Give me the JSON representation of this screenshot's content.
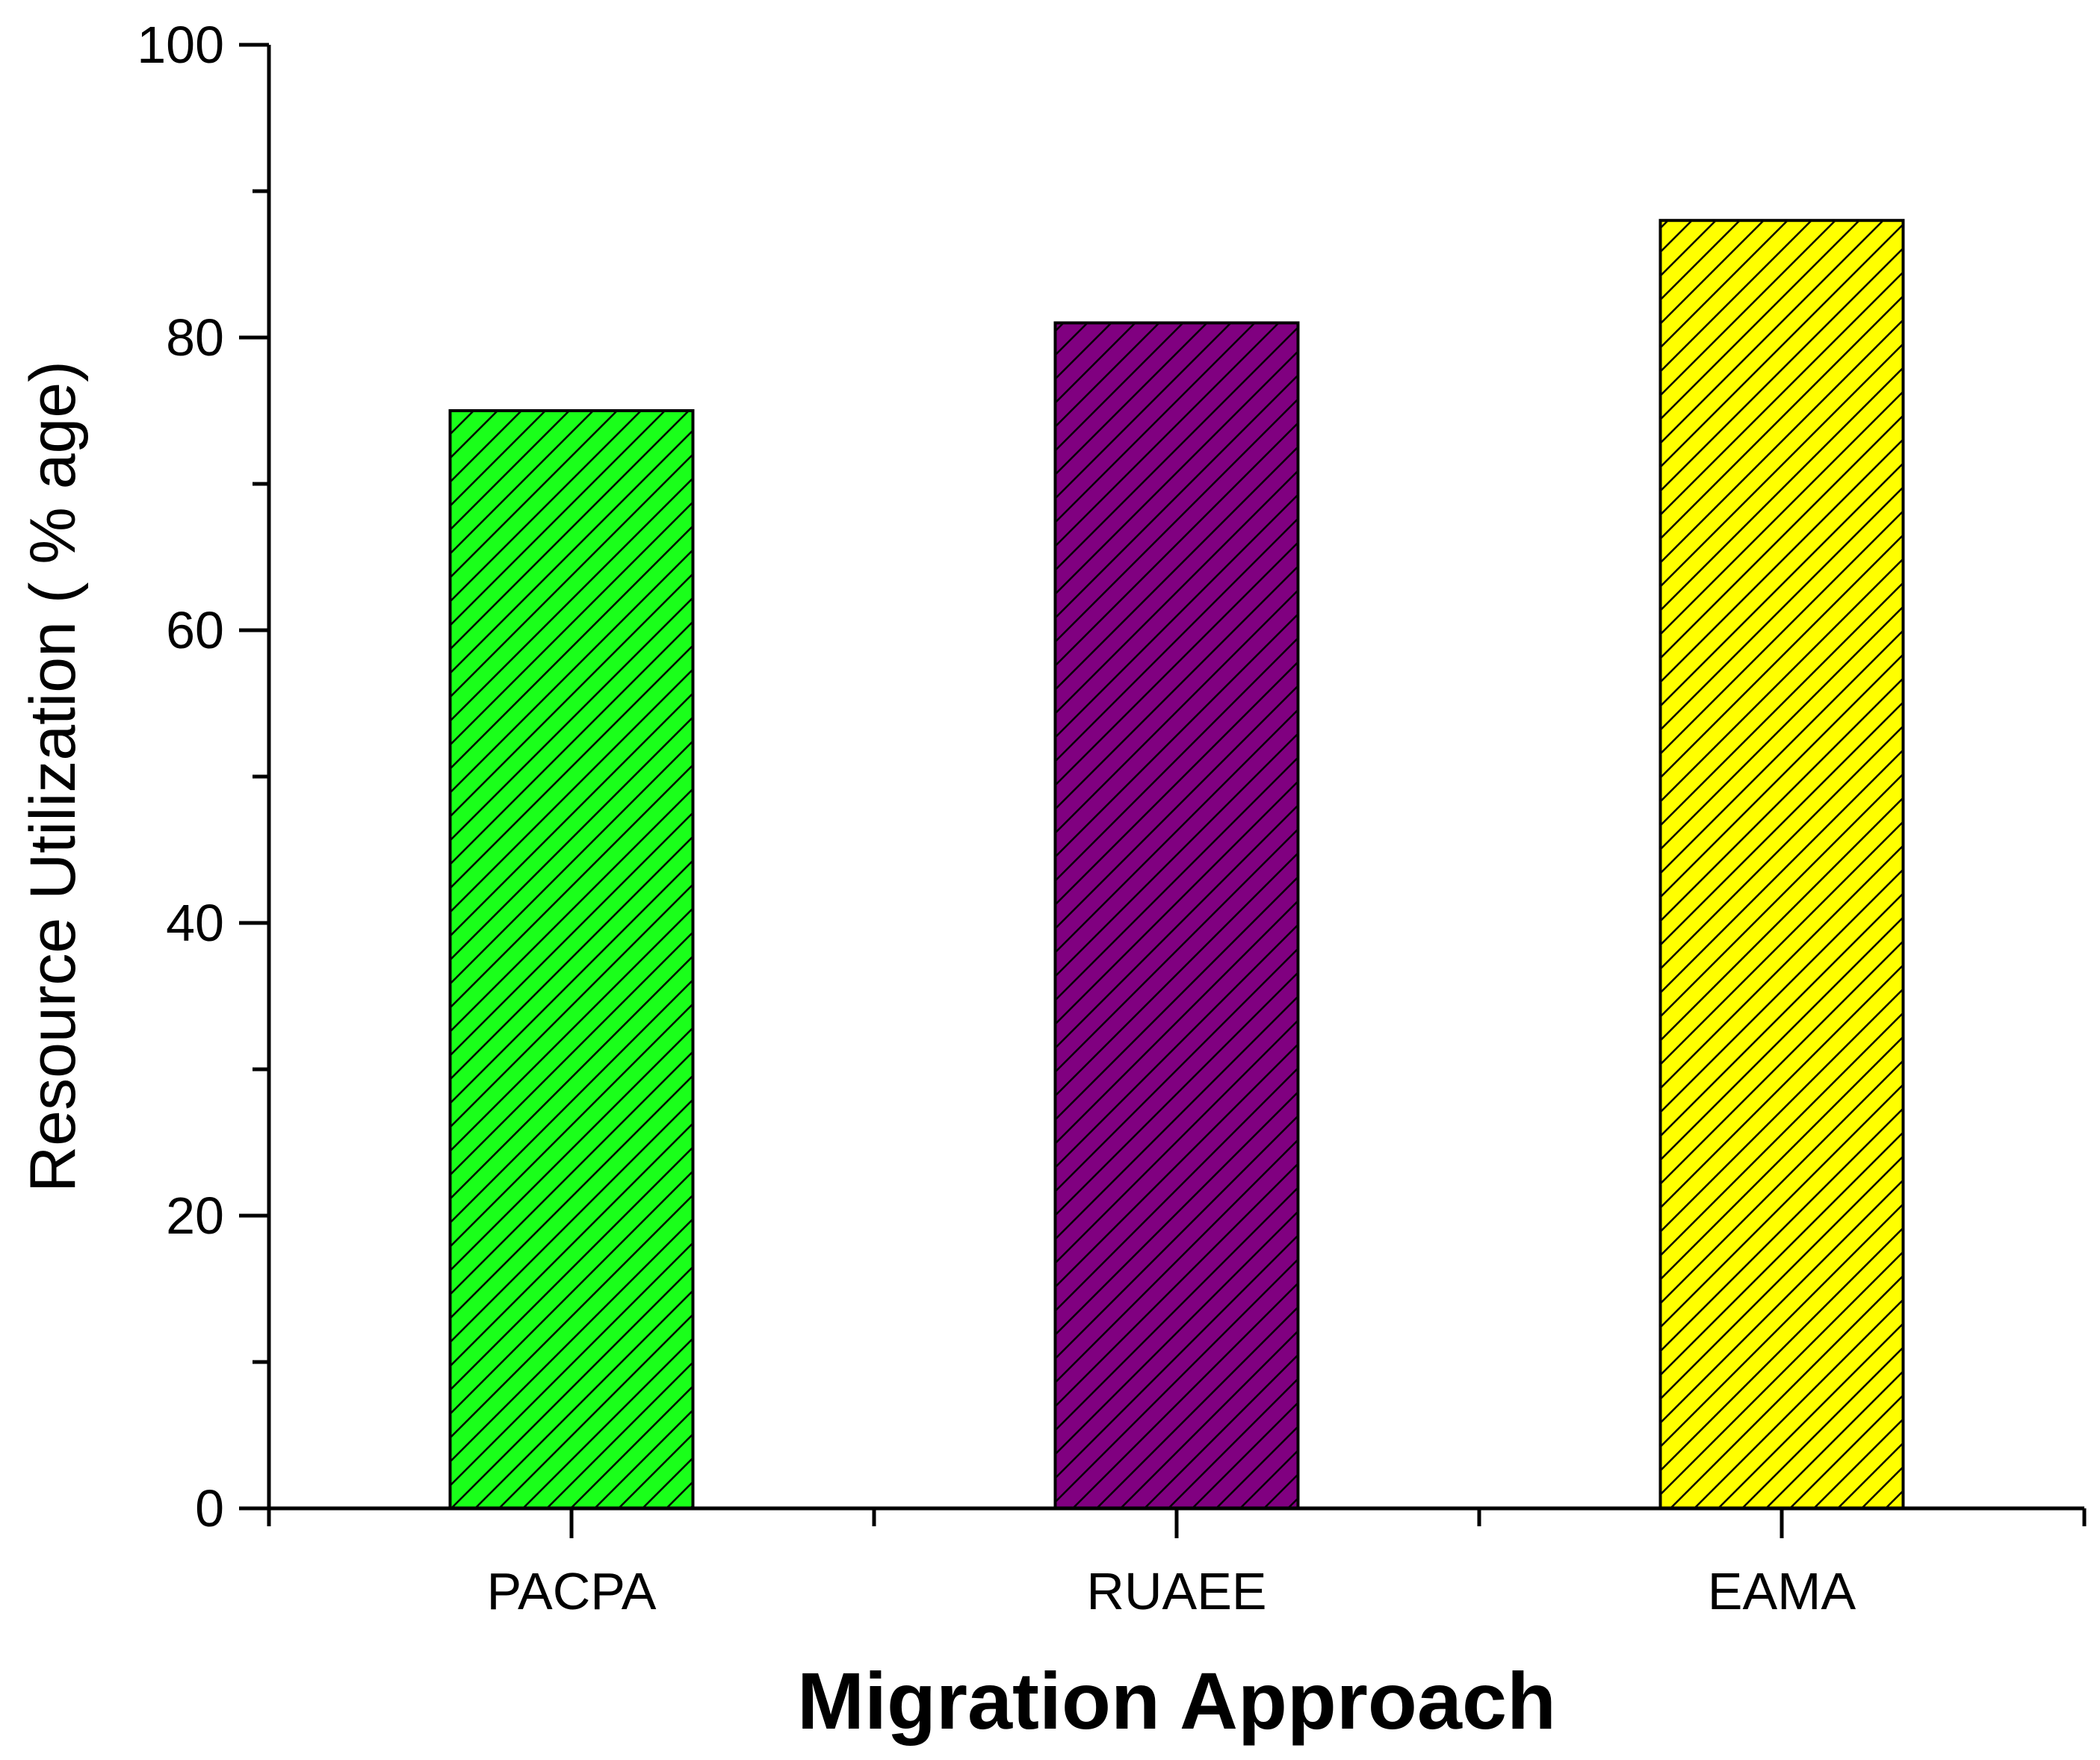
{
  "chart_data": {
    "type": "bar",
    "title": "",
    "xlabel": "Migration Approach",
    "ylabel": "Resource Utilization ( % age)",
    "ylim": [
      0,
      100
    ],
    "y_major_ticks": [
      0,
      20,
      40,
      60,
      80,
      100
    ],
    "y_major_tick_labels": [
      "0",
      "20",
      "40",
      "60",
      "80",
      "100"
    ],
    "y_minor_ticks": [
      10,
      30,
      50,
      70,
      90
    ],
    "categories": [
      "PACPA",
      "RUAEE",
      "EAMA"
    ],
    "values": [
      75,
      81,
      88
    ],
    "bar_colors": [
      "#1aff1a",
      "#800080",
      "#ffff00"
    ],
    "hatch": "diagonal",
    "grid": false,
    "legend": "none"
  }
}
